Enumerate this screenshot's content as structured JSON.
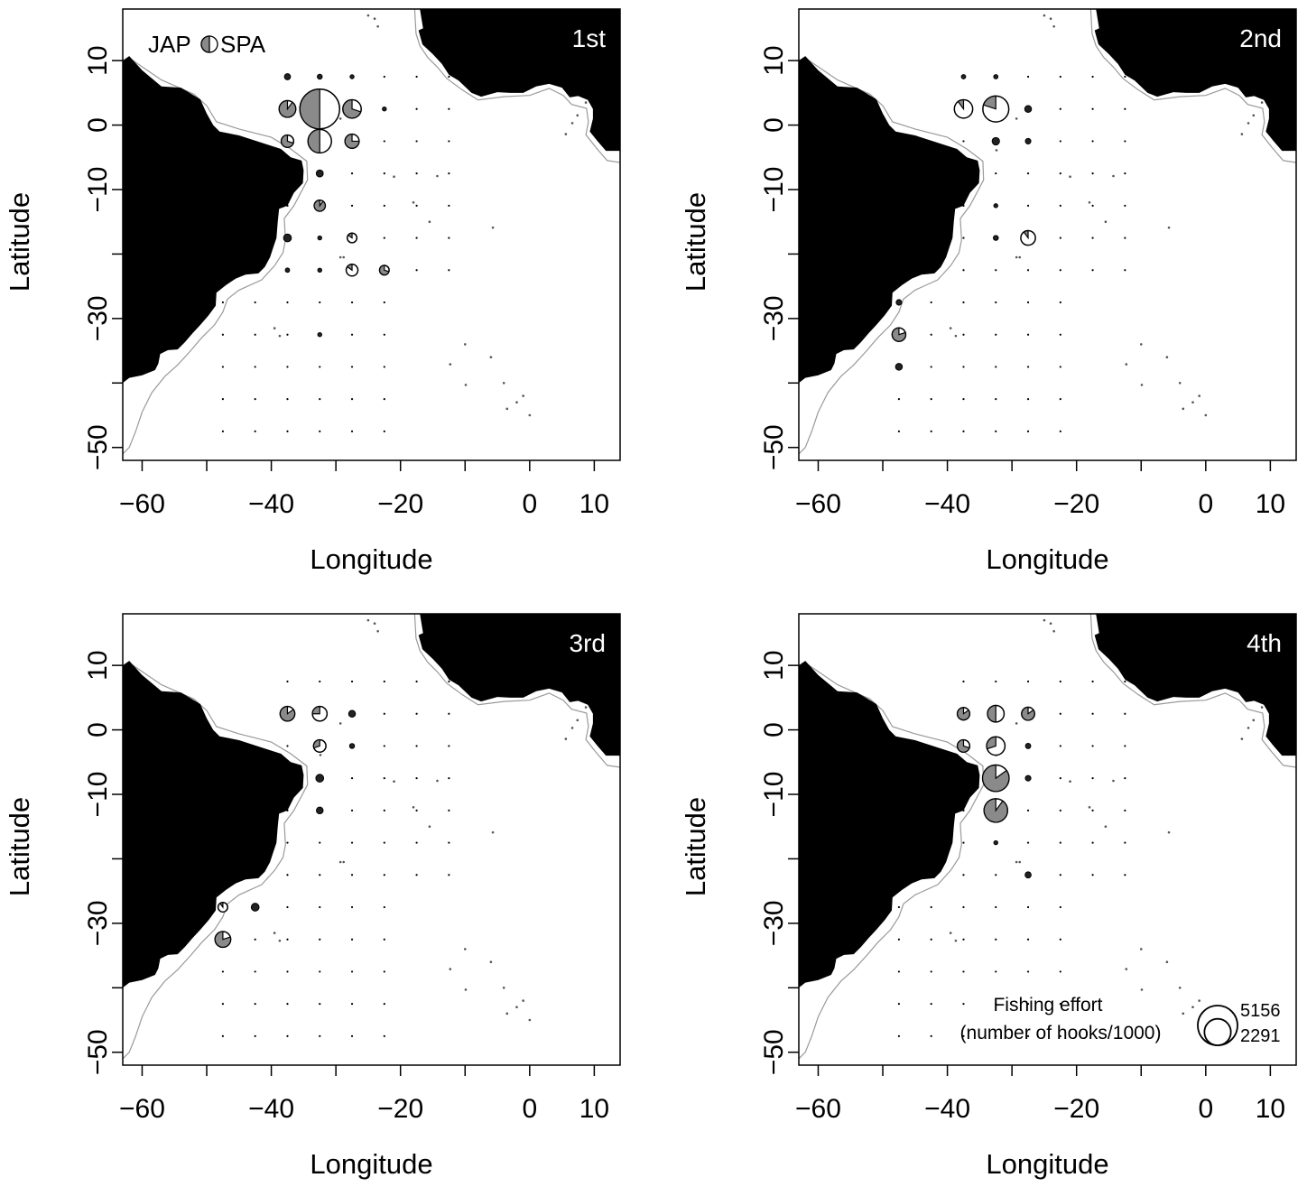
{
  "figure": {
    "xlabel": "Longitude",
    "ylabel": "Latitude",
    "xticks": [
      -60,
      -40,
      -20,
      0,
      10
    ],
    "yticks": [
      10,
      0,
      -10,
      -30,
      -50
    ],
    "xlim": [
      -63,
      14
    ],
    "ylim": [
      -52,
      18
    ],
    "legend_fleets": {
      "left": "JAP",
      "right": "SPA"
    },
    "effort_legend": {
      "title_line1": "Fishing effort",
      "title_line2": "(number of hooks/1000)",
      "large_value": "5156",
      "small_value": "2291"
    },
    "colors": {
      "land": "#000000",
      "jap": "#8a8a8a",
      "spa": "#ffffff",
      "coast": "#9a9a9a"
    }
  },
  "chart_data": [
    {
      "type": "map-pie",
      "title": "1st",
      "points": [
        {
          "lon": -32.5,
          "lat": 2.5,
          "effort": 5156,
          "jap": 0.5
        },
        {
          "lon": -37.5,
          "lat": 2.5,
          "effort": 900,
          "jap": 0.9
        },
        {
          "lon": -27.5,
          "lat": 2.5,
          "effort": 1100,
          "jap": 0.7
        },
        {
          "lon": -32.5,
          "lat": -2.5,
          "effort": 1800,
          "jap": 0.5
        },
        {
          "lon": -37.5,
          "lat": -2.5,
          "effort": 500,
          "jap": 0.7
        },
        {
          "lon": -27.5,
          "lat": -2.5,
          "effort": 650,
          "jap": 0.75
        },
        {
          "lon": -32.5,
          "lat": 7.5,
          "effort": 80,
          "jap": 1
        },
        {
          "lon": -37.5,
          "lat": 7.5,
          "effort": 120,
          "jap": 1
        },
        {
          "lon": -27.5,
          "lat": 7.5,
          "effort": 40,
          "jap": 1
        },
        {
          "lon": -22.5,
          "lat": 2.5,
          "effort": 30,
          "jap": 1
        },
        {
          "lon": -32.5,
          "lat": -7.5,
          "effort": 160,
          "jap": 1
        },
        {
          "lon": -32.5,
          "lat": -12.5,
          "effort": 400,
          "jap": 0.9
        },
        {
          "lon": -37.5,
          "lat": -17.5,
          "effort": 200,
          "jap": 0.9
        },
        {
          "lon": -32.5,
          "lat": -17.5,
          "effort": 30,
          "jap": 1
        },
        {
          "lon": -27.5,
          "lat": -17.5,
          "effort": 300,
          "jap": 0.15
        },
        {
          "lon": -37.5,
          "lat": -22.5,
          "effort": 60,
          "jap": 1
        },
        {
          "lon": -32.5,
          "lat": -22.5,
          "effort": 40,
          "jap": 1
        },
        {
          "lon": -27.5,
          "lat": -22.5,
          "effort": 450,
          "jap": 0.15
        },
        {
          "lon": -22.5,
          "lat": -22.5,
          "effort": 300,
          "jap": 0.7
        },
        {
          "lon": -32.5,
          "lat": -32.5,
          "effort": 40,
          "jap": 1
        }
      ]
    },
    {
      "type": "map-pie",
      "title": "2nd",
      "points": [
        {
          "lon": -37.5,
          "lat": 2.5,
          "effort": 1100,
          "jap": 0.1
        },
        {
          "lon": -32.5,
          "lat": 2.5,
          "effort": 2200,
          "jap": 0.2
        },
        {
          "lon": -27.5,
          "lat": 2.5,
          "effort": 150,
          "jap": 0.6
        },
        {
          "lon": -32.5,
          "lat": -2.5,
          "effort": 180,
          "jap": 0.8
        },
        {
          "lon": -27.5,
          "lat": -2.5,
          "effort": 100,
          "jap": 1
        },
        {
          "lon": -32.5,
          "lat": 7.5,
          "effort": 60,
          "jap": 1
        },
        {
          "lon": -37.5,
          "lat": 7.5,
          "effort": 60,
          "jap": 1
        },
        {
          "lon": -32.5,
          "lat": -12.5,
          "effort": 50,
          "jap": 1
        },
        {
          "lon": -32.5,
          "lat": -17.5,
          "effort": 80,
          "jap": 0.5
        },
        {
          "lon": -27.5,
          "lat": -17.5,
          "effort": 700,
          "jap": 0.1
        },
        {
          "lon": -47.5,
          "lat": -27.5,
          "effort": 100,
          "jap": 1
        },
        {
          "lon": -47.5,
          "lat": -32.5,
          "effort": 600,
          "jap": 0.8
        },
        {
          "lon": -47.5,
          "lat": -37.5,
          "effort": 150,
          "jap": 0.8
        }
      ]
    },
    {
      "type": "map-pie",
      "title": "3rd",
      "points": [
        {
          "lon": -37.5,
          "lat": 2.5,
          "effort": 700,
          "jap": 0.85
        },
        {
          "lon": -32.5,
          "lat": 2.5,
          "effort": 700,
          "jap": 0.25
        },
        {
          "lon": -27.5,
          "lat": 2.5,
          "effort": 150,
          "jap": 0.6
        },
        {
          "lon": -32.5,
          "lat": -2.5,
          "effort": 500,
          "jap": 0.3
        },
        {
          "lon": -27.5,
          "lat": -2.5,
          "effort": 80,
          "jap": 0.6
        },
        {
          "lon": -32.5,
          "lat": -7.5,
          "effort": 200,
          "jap": 0.8
        },
        {
          "lon": -32.5,
          "lat": -12.5,
          "effort": 150,
          "jap": 0.8
        },
        {
          "lon": -47.5,
          "lat": -27.5,
          "effort": 300,
          "jap": 0.1
        },
        {
          "lon": -42.5,
          "lat": -27.5,
          "effort": 200,
          "jap": 0.7
        },
        {
          "lon": -47.5,
          "lat": -32.5,
          "effort": 800,
          "jap": 0.8
        }
      ]
    },
    {
      "type": "map-pie",
      "title": "4th",
      "points": [
        {
          "lon": -37.5,
          "lat": 2.5,
          "effort": 500,
          "jap": 0.85
        },
        {
          "lon": -32.5,
          "lat": 2.5,
          "effort": 900,
          "jap": 0.5
        },
        {
          "lon": -27.5,
          "lat": 2.5,
          "effort": 550,
          "jap": 0.85
        },
        {
          "lon": -37.5,
          "lat": -2.5,
          "effort": 500,
          "jap": 0.7
        },
        {
          "lon": -32.5,
          "lat": -2.5,
          "effort": 1100,
          "jap": 0.3
        },
        {
          "lon": -27.5,
          "lat": -2.5,
          "effort": 90,
          "jap": 0.6
        },
        {
          "lon": -32.5,
          "lat": -7.5,
          "effort": 2291,
          "jap": 0.85
        },
        {
          "lon": -27.5,
          "lat": -7.5,
          "effort": 100,
          "jap": 0.8
        },
        {
          "lon": -32.5,
          "lat": -12.5,
          "effort": 1800,
          "jap": 0.9
        },
        {
          "lon": -27.5,
          "lat": -22.5,
          "effort": 120,
          "jap": 0.4
        },
        {
          "lon": -32.5,
          "lat": -17.5,
          "effort": 40,
          "jap": 1
        }
      ]
    }
  ]
}
